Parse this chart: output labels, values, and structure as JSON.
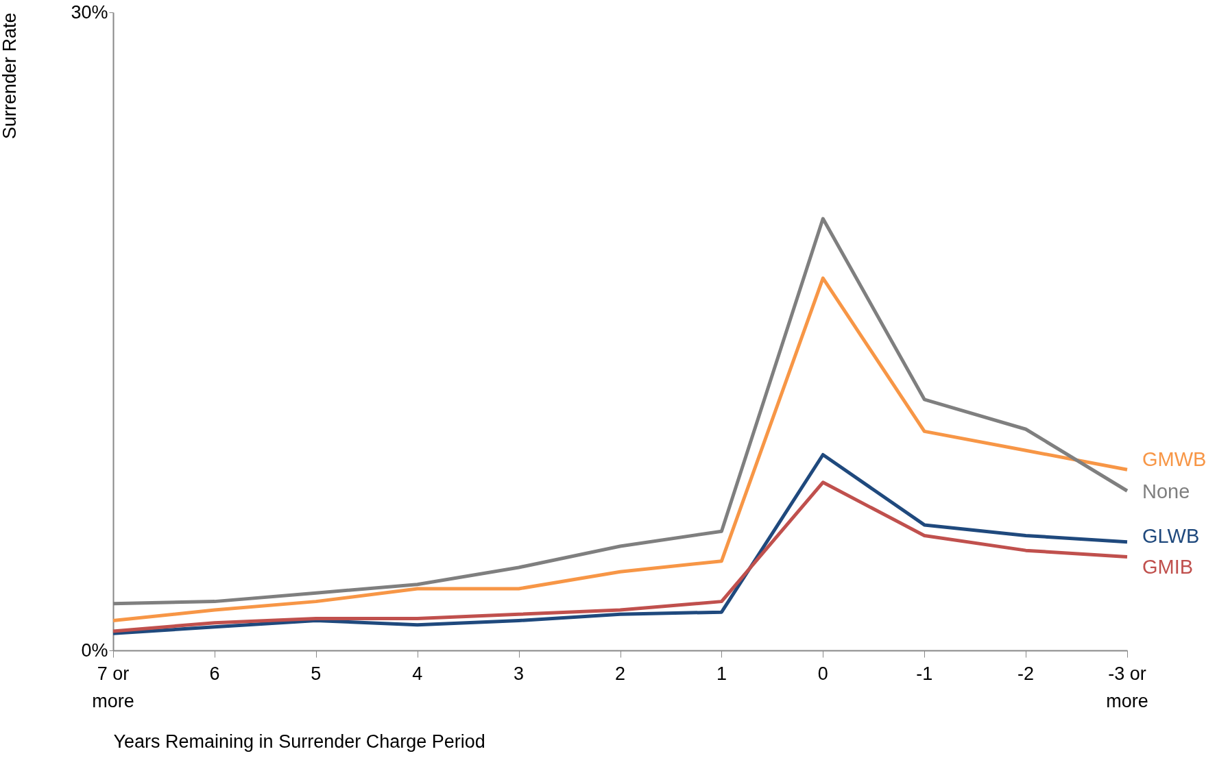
{
  "chart_data": {
    "type": "line",
    "ylabel": "Surrender Rate",
    "xlabel": "Years Remaining in Surrender Charge Period",
    "categories": [
      "7 or more",
      "6",
      "5",
      "4",
      "3",
      "2",
      "1",
      "0",
      "-1",
      "-2",
      "-3 or more"
    ],
    "series": [
      {
        "name": "GMWB",
        "color": "#f79646",
        "values": [
          1.4,
          1.9,
          2.3,
          2.9,
          2.9,
          3.7,
          4.2,
          17.5,
          10.3,
          9.4,
          8.5
        ]
      },
      {
        "name": "None",
        "color": "#7f7f7f",
        "values": [
          2.2,
          2.3,
          2.7,
          3.1,
          3.9,
          4.9,
          5.6,
          20.3,
          11.8,
          10.4,
          7.5
        ]
      },
      {
        "name": "GLWB",
        "color": "#1f497d",
        "values": [
          0.8,
          1.1,
          1.4,
          1.2,
          1.4,
          1.7,
          1.8,
          9.2,
          5.9,
          5.4,
          5.1
        ]
      },
      {
        "name": "GMIB",
        "color": "#c0504d",
        "values": [
          0.9,
          1.3,
          1.5,
          1.5,
          1.7,
          1.9,
          2.3,
          7.9,
          5.4,
          4.7,
          4.4
        ]
      }
    ],
    "ylim": [
      0,
      30
    ],
    "yticks": [
      {
        "value": 0,
        "label": "0%"
      },
      {
        "value": 30,
        "label": "30%"
      }
    ],
    "grid": false,
    "line_style": "solid",
    "marker": "none"
  }
}
